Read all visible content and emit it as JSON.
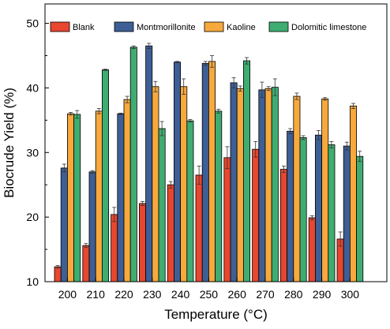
{
  "chart_data": {
    "type": "bar",
    "title": "",
    "xlabel": "Temperature (°C)",
    "ylabel": "Biocrude Yield (%)",
    "ylim": [
      10,
      53
    ],
    "yticks": [
      10,
      20,
      30,
      40,
      50
    ],
    "grid": false,
    "legend_position": "top",
    "categories": [
      "200",
      "210",
      "220",
      "230",
      "240",
      "250",
      "260",
      "270",
      "280",
      "290",
      "300"
    ],
    "series": [
      {
        "name": "Blank",
        "color": "#e8462e",
        "values": [
          12.3,
          15.6,
          20.4,
          22.1,
          25.0,
          26.5,
          29.2,
          30.5,
          27.4,
          19.9,
          16.6
        ],
        "errors": [
          0.2,
          0.3,
          1.1,
          0.3,
          0.5,
          1.4,
          1.7,
          1.2,
          0.5,
          0.3,
          1.1
        ]
      },
      {
        "name": "Montmorillonite",
        "color": "#3d5f95",
        "values": [
          27.6,
          27.0,
          36.0,
          46.5,
          44.0,
          43.8,
          40.8,
          39.7,
          33.3,
          32.7,
          31.0
        ],
        "errors": [
          0.6,
          0.2,
          0.1,
          0.4,
          0.1,
          0.3,
          0.8,
          1.2,
          0.4,
          0.7,
          0.6
        ]
      },
      {
        "name": "Kaoline",
        "color": "#f7a93d",
        "values": [
          36.0,
          36.4,
          38.2,
          40.2,
          40.2,
          44.1,
          39.9,
          39.9,
          38.7,
          38.3,
          37.2
        ],
        "errors": [
          0.2,
          0.4,
          0.5,
          0.8,
          1.2,
          0.9,
          0.4,
          0.3,
          0.5,
          0.2,
          0.4
        ]
      },
      {
        "name": "Dolomitic limestone",
        "color": "#3fad72",
        "values": [
          35.9,
          42.8,
          46.3,
          33.7,
          34.9,
          36.4,
          44.2,
          40.1,
          32.3,
          31.2,
          29.4
        ],
        "errors": [
          0.6,
          0.1,
          0.2,
          1.1,
          0.2,
          0.3,
          0.5,
          1.3,
          0.3,
          0.5,
          0.8
        ]
      }
    ]
  }
}
